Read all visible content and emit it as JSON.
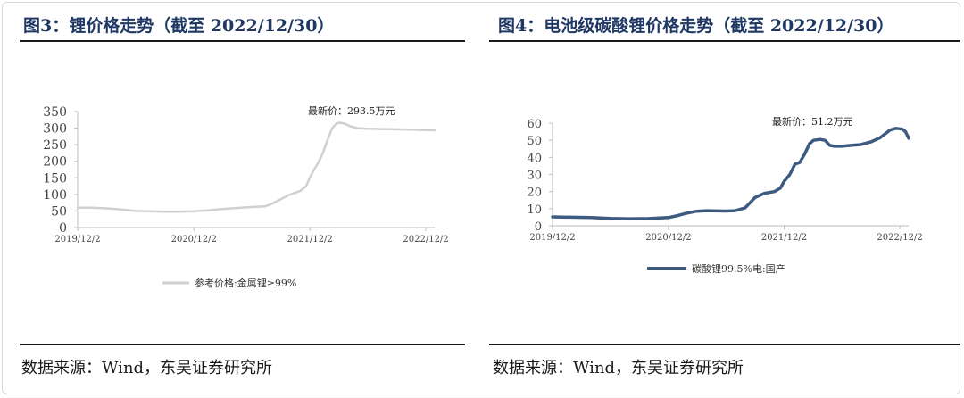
{
  "source_label": "数据来源：Wind，东吴证券研究所",
  "chart_data": [
    {
      "type": "line",
      "title": "图3：锂价格走势（截至 2022/12/30）",
      "annotation": "最新价：293.5万元",
      "ylim": [
        0,
        350
      ],
      "yticks": [
        "0",
        "50",
        "100",
        "150",
        "200",
        "250",
        "300",
        "350"
      ],
      "xticks": [
        "2019/12/2",
        "2020/12/2",
        "2021/12/2",
        "2022/12/2"
      ],
      "x_start": "2019-12-02",
      "x_end": "2022-12-30",
      "grid": false,
      "legend_position": "bottom",
      "series": [
        {
          "name": "参考价格:金属锂≥99%",
          "color": "#d0d0d0",
          "points": [
            [
              "2019-12-02",
              60
            ],
            [
              "2020-01-15",
              60
            ],
            [
              "2020-03-01",
              58
            ],
            [
              "2020-04-15",
              55
            ],
            [
              "2020-06-01",
              50
            ],
            [
              "2020-07-15",
              49
            ],
            [
              "2020-09-01",
              48
            ],
            [
              "2020-10-15",
              48
            ],
            [
              "2020-12-02",
              49
            ],
            [
              "2021-01-15",
              52
            ],
            [
              "2021-03-01",
              56
            ],
            [
              "2021-04-15",
              59
            ],
            [
              "2021-06-01",
              62
            ],
            [
              "2021-07-15",
              64
            ],
            [
              "2021-08-01",
              70
            ],
            [
              "2021-09-01",
              85
            ],
            [
              "2021-10-01",
              100
            ],
            [
              "2021-11-01",
              110
            ],
            [
              "2021-11-20",
              125
            ],
            [
              "2021-12-02",
              150
            ],
            [
              "2021-12-15",
              175
            ],
            [
              "2021-12-28",
              195
            ],
            [
              "2022-01-10",
              220
            ],
            [
              "2022-01-25",
              260
            ],
            [
              "2022-02-10",
              300
            ],
            [
              "2022-02-25",
              315
            ],
            [
              "2022-03-10",
              316
            ],
            [
              "2022-03-25",
              312
            ],
            [
              "2022-04-10",
              305
            ],
            [
              "2022-05-01",
              300
            ],
            [
              "2022-06-01",
              298
            ],
            [
              "2022-08-01",
              297
            ],
            [
              "2022-10-01",
              296
            ],
            [
              "2022-12-30",
              293.5
            ]
          ]
        }
      ]
    },
    {
      "type": "line",
      "title": "图4：电池级碳酸锂价格走势（截至 2022/12/30）",
      "annotation": "最新价：51.2万元",
      "ylim": [
        0,
        60
      ],
      "yticks": [
        "0",
        "10",
        "20",
        "30",
        "40",
        "50",
        "60"
      ],
      "xticks": [
        "2019/12/2",
        "2020/12/2",
        "2021/12/2",
        "2022/12/2"
      ],
      "x_start": "2019-12-02",
      "x_end": "2022-12-30",
      "grid": false,
      "legend_position": "bottom",
      "series": [
        {
          "name": "碳酸锂99.5%电:国产",
          "color": "#3d5a80",
          "points": [
            [
              "2019-12-02",
              5.2
            ],
            [
              "2020-02-01",
              5.0
            ],
            [
              "2020-04-01",
              4.8
            ],
            [
              "2020-06-01",
              4.3
            ],
            [
              "2020-08-01",
              4.1
            ],
            [
              "2020-10-01",
              4.2
            ],
            [
              "2020-12-02",
              4.8
            ],
            [
              "2021-01-01",
              6.0
            ],
            [
              "2021-02-01",
              7.5
            ],
            [
              "2021-03-01",
              8.5
            ],
            [
              "2021-04-01",
              8.8
            ],
            [
              "2021-06-01",
              8.6
            ],
            [
              "2021-07-01",
              8.8
            ],
            [
              "2021-08-01",
              10.5
            ],
            [
              "2021-09-01",
              16.5
            ],
            [
              "2021-10-01",
              19.0
            ],
            [
              "2021-11-01",
              20.0
            ],
            [
              "2021-11-20",
              22.0
            ],
            [
              "2021-12-02",
              26.0
            ],
            [
              "2021-12-20",
              30.0
            ],
            [
              "2022-01-05",
              36.0
            ],
            [
              "2022-01-20",
              37.0
            ],
            [
              "2022-02-05",
              42.0
            ],
            [
              "2022-02-20",
              48.0
            ],
            [
              "2022-03-05",
              50.0
            ],
            [
              "2022-03-25",
              50.5
            ],
            [
              "2022-04-10",
              50.0
            ],
            [
              "2022-04-25",
              47.0
            ],
            [
              "2022-05-10",
              46.5
            ],
            [
              "2022-06-01",
              46.5
            ],
            [
              "2022-07-01",
              47.0
            ],
            [
              "2022-08-01",
              47.5
            ],
            [
              "2022-09-01",
              49.0
            ],
            [
              "2022-10-01",
              51.5
            ],
            [
              "2022-11-01",
              56.0
            ],
            [
              "2022-11-20",
              57.0
            ],
            [
              "2022-12-10",
              56.5
            ],
            [
              "2022-12-20",
              55.0
            ],
            [
              "2022-12-30",
              51.2
            ]
          ]
        }
      ]
    }
  ]
}
